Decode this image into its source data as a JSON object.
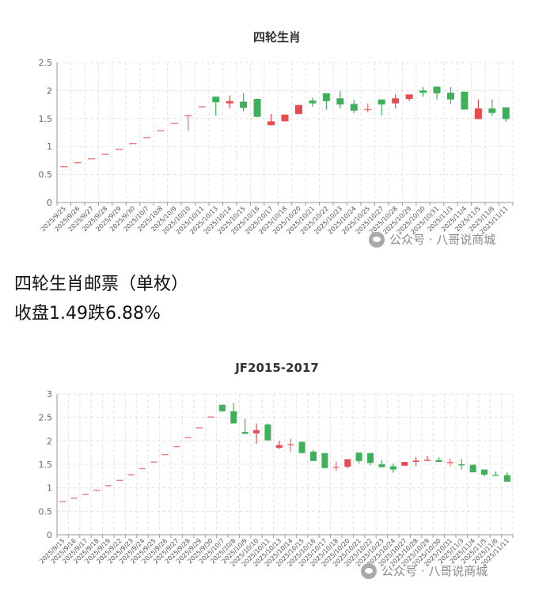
{
  "caption": {
    "title": "四轮生肖邮票（单枚）",
    "summary": "收盘1.49跌6.88%"
  },
  "watermark": "公众号 · 八哥说商城",
  "colors": {
    "up": "#e84a4f",
    "down": "#3fb05a",
    "grid": "#e3e3e3",
    "axis": "#999999"
  },
  "chart_data": [
    {
      "type": "candlestick",
      "title": "四轮生肖",
      "ylim": [
        0,
        2.5
      ],
      "yticks": [
        0,
        0.5,
        1,
        1.5,
        2,
        2.5
      ],
      "ytick_labels": [
        "0",
        "0.5",
        "1",
        "1.5",
        "2",
        "2.5"
      ],
      "grid": true,
      "categories": [
        "2025/9/25",
        "2025/9/26",
        "2025/9/27",
        "2025/9/28",
        "2025/9/29",
        "2025/9/30",
        "2025/10/7",
        "2025/10/8",
        "2025/10/9",
        "2025/10/10",
        "2025/10/11",
        "2025/10/13",
        "2025/10/14",
        "2025/10/15",
        "2025/10/16",
        "2025/10/17",
        "2025/10/18",
        "2025/10/20",
        "2025/10/21",
        "2025/10/22",
        "2025/10/23",
        "2025/10/24",
        "2025/10/25",
        "2025/10/27",
        "2025/10/28",
        "2025/10/29",
        "2025/10/30",
        "2025/10/31",
        "2025/11/3",
        "2025/11/4",
        "2025/11/5",
        "2025/11/6",
        "2025/11/11"
      ],
      "ohlc": [
        [
          0.65,
          0.65,
          0.65,
          0.65
        ],
        [
          0.72,
          0.72,
          0.72,
          0.72
        ],
        [
          0.79,
          0.79,
          0.79,
          0.79
        ],
        [
          0.87,
          0.87,
          0.87,
          0.87
        ],
        [
          0.96,
          0.96,
          0.96,
          0.96
        ],
        [
          1.06,
          1.06,
          1.06,
          1.06
        ],
        [
          1.17,
          1.17,
          1.17,
          1.17
        ],
        [
          1.29,
          1.29,
          1.29,
          1.29
        ],
        [
          1.42,
          1.42,
          1.42,
          1.42
        ],
        [
          1.56,
          1.56,
          1.28,
          1.56
        ],
        [
          1.72,
          1.72,
          1.72,
          1.72
        ],
        [
          1.89,
          1.89,
          1.55,
          1.79
        ],
        [
          1.77,
          1.91,
          1.68,
          1.81
        ],
        [
          1.8,
          1.95,
          1.63,
          1.69
        ],
        [
          1.85,
          1.86,
          1.52,
          1.53
        ],
        [
          1.38,
          1.58,
          1.38,
          1.45
        ],
        [
          1.45,
          1.57,
          1.45,
          1.57
        ],
        [
          1.58,
          1.74,
          1.58,
          1.74
        ],
        [
          1.82,
          1.87,
          1.71,
          1.77
        ],
        [
          1.95,
          1.95,
          1.66,
          1.81
        ],
        [
          1.86,
          1.99,
          1.68,
          1.75
        ],
        [
          1.76,
          1.83,
          1.59,
          1.64
        ],
        [
          1.67,
          1.77,
          1.61,
          1.67
        ],
        [
          1.84,
          1.84,
          1.55,
          1.75
        ],
        [
          1.77,
          1.93,
          1.68,
          1.86
        ],
        [
          1.85,
          1.93,
          1.81,
          1.93
        ],
        [
          2.0,
          2.06,
          1.89,
          1.96
        ],
        [
          2.07,
          2.07,
          1.84,
          1.95
        ],
        [
          1.96,
          2.06,
          1.76,
          1.84
        ],
        [
          1.98,
          1.98,
          1.66,
          1.66
        ],
        [
          1.49,
          1.84,
          1.49,
          1.68
        ],
        [
          1.68,
          1.84,
          1.55,
          1.6
        ],
        [
          1.7,
          1.7,
          1.44,
          1.49
        ]
      ]
    },
    {
      "type": "candlestick",
      "title": "JF2015-2017",
      "ylim": [
        0,
        3
      ],
      "yticks": [
        0,
        0.5,
        1,
        1.5,
        2,
        2.5,
        3
      ],
      "ytick_labels": [
        "0",
        "0.5",
        "1",
        "1.5",
        "2",
        "2.5",
        "3"
      ],
      "grid": true,
      "categories": [
        "2025/9/15",
        "2025/9/16",
        "2025/9/17",
        "2025/9/18",
        "2025/9/19",
        "2025/9/22",
        "2025/9/23",
        "2025/9/24",
        "2025/9/25",
        "2025/9/26",
        "2025/9/27",
        "2025/9/28",
        "2025/9/29",
        "2025/9/30",
        "2025/10/7",
        "2025/10/8",
        "2025/10/9",
        "2025/10/10",
        "2025/10/11",
        "2025/10/13",
        "2025/10/14",
        "2025/10/15",
        "2025/10/16",
        "2025/10/17",
        "2025/10/18",
        "2025/10/20",
        "2025/10/21",
        "2025/10/22",
        "2025/10/23",
        "2025/10/24",
        "2025/10/27",
        "2025/10/28",
        "2025/10/29",
        "2025/10/30",
        "2025/10/31",
        "2025/11/3",
        "2025/11/4",
        "2025/11/5",
        "2025/11/6",
        "2025/11/11"
      ],
      "ohlc": [
        [
          0.72,
          0.72,
          0.72,
          0.72
        ],
        [
          0.79,
          0.79,
          0.79,
          0.79
        ],
        [
          0.87,
          0.87,
          0.87,
          0.87
        ],
        [
          0.96,
          0.96,
          0.96,
          0.96
        ],
        [
          1.06,
          1.06,
          1.06,
          1.06
        ],
        [
          1.17,
          1.17,
          1.17,
          1.17
        ],
        [
          1.29,
          1.29,
          1.29,
          1.29
        ],
        [
          1.42,
          1.42,
          1.42,
          1.42
        ],
        [
          1.56,
          1.56,
          1.56,
          1.56
        ],
        [
          1.72,
          1.72,
          1.72,
          1.72
        ],
        [
          1.89,
          1.89,
          1.89,
          1.89
        ],
        [
          2.08,
          2.08,
          2.08,
          2.08
        ],
        [
          2.29,
          2.29,
          2.29,
          2.29
        ],
        [
          2.52,
          2.52,
          2.52,
          2.52
        ],
        [
          2.77,
          2.77,
          2.62,
          2.63
        ],
        [
          2.63,
          2.81,
          2.37,
          2.37
        ],
        [
          2.19,
          2.48,
          2.15,
          2.15
        ],
        [
          2.16,
          2.37,
          1.94,
          2.23
        ],
        [
          2.35,
          2.37,
          2.01,
          2.01
        ],
        [
          1.85,
          2.0,
          1.83,
          1.91
        ],
        [
          1.93,
          2.05,
          1.76,
          1.93
        ],
        [
          1.98,
          1.98,
          1.74,
          1.74
        ],
        [
          1.77,
          1.81,
          1.57,
          1.57
        ],
        [
          1.74,
          1.74,
          1.42,
          1.42
        ],
        [
          1.45,
          1.56,
          1.36,
          1.45
        ],
        [
          1.45,
          1.61,
          1.41,
          1.61
        ],
        [
          1.75,
          1.75,
          1.52,
          1.57
        ],
        [
          1.74,
          1.74,
          1.48,
          1.53
        ],
        [
          1.5,
          1.59,
          1.44,
          1.44
        ],
        [
          1.46,
          1.52,
          1.32,
          1.39
        ],
        [
          1.47,
          1.55,
          1.47,
          1.55
        ],
        [
          1.55,
          1.66,
          1.46,
          1.58
        ],
        [
          1.58,
          1.68,
          1.58,
          1.6
        ],
        [
          1.59,
          1.65,
          1.55,
          1.55
        ],
        [
          1.55,
          1.62,
          1.46,
          1.55
        ],
        [
          1.5,
          1.61,
          1.39,
          1.48
        ],
        [
          1.49,
          1.49,
          1.33,
          1.33
        ],
        [
          1.39,
          1.39,
          1.24,
          1.28
        ],
        [
          1.28,
          1.35,
          1.26,
          1.26
        ],
        [
          1.27,
          1.33,
          1.13,
          1.13
        ]
      ]
    }
  ]
}
